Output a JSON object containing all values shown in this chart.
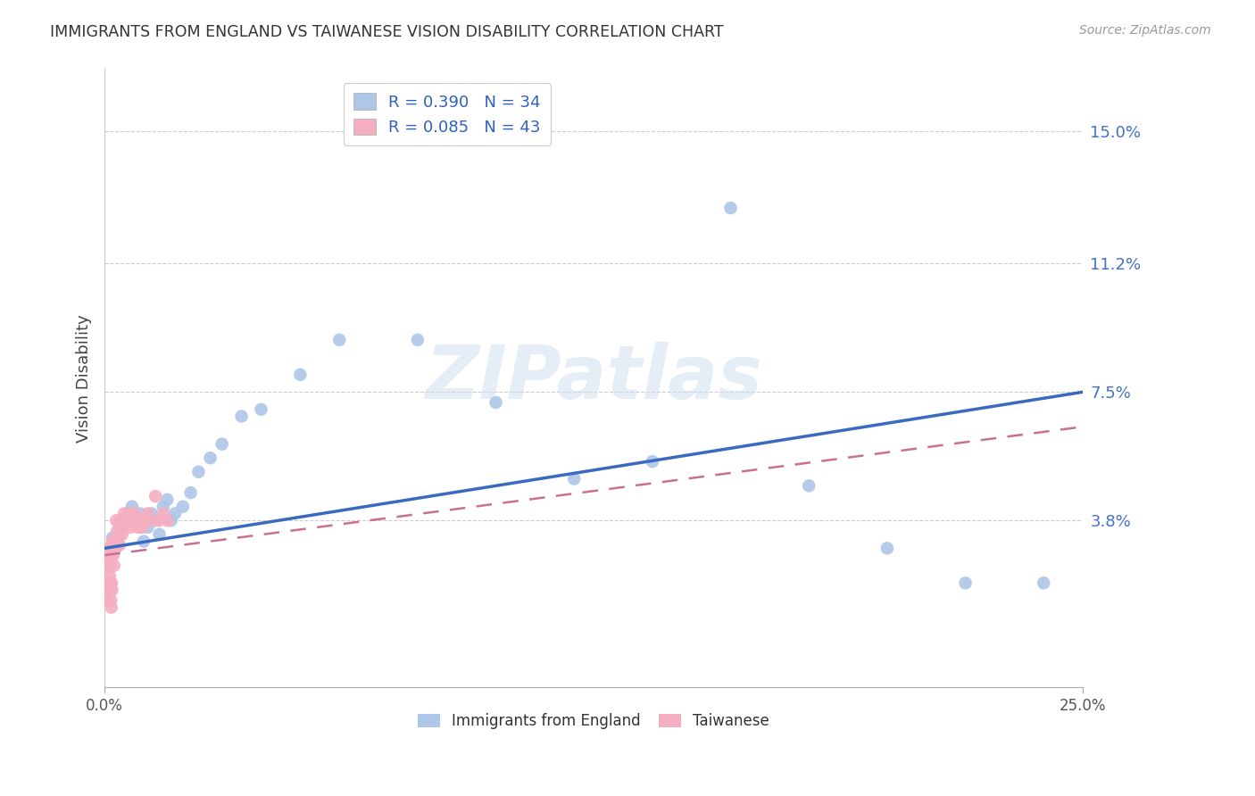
{
  "title": "IMMIGRANTS FROM ENGLAND VS TAIWANESE VISION DISABILITY CORRELATION CHART",
  "source": "Source: ZipAtlas.com",
  "ylabel": "Vision Disability",
  "ytick_vals": [
    0.038,
    0.075,
    0.112,
    0.15
  ],
  "ytick_labels": [
    "3.8%",
    "7.5%",
    "11.2%",
    "15.0%"
  ],
  "xlim": [
    0.0,
    0.25
  ],
  "ylim": [
    -0.01,
    0.168
  ],
  "watermark": "ZIPatlas",
  "legend_england_r": "R = 0.390",
  "legend_england_n": "N = 34",
  "legend_taiwanese_r": "R = 0.085",
  "legend_taiwanese_n": "N = 43",
  "england_color": "#aec6e8",
  "england_line_color": "#3a6abf",
  "taiwanese_color": "#f4aec0",
  "taiwanese_line_color": "#c97090",
  "england_points_x": [
    0.002,
    0.004,
    0.005,
    0.006,
    0.007,
    0.008,
    0.009,
    0.01,
    0.011,
    0.012,
    0.013,
    0.014,
    0.015,
    0.016,
    0.017,
    0.018,
    0.02,
    0.022,
    0.024,
    0.027,
    0.03,
    0.035,
    0.04,
    0.05,
    0.06,
    0.08,
    0.1,
    0.12,
    0.14,
    0.16,
    0.18,
    0.2,
    0.22,
    0.24
  ],
  "england_points_y": [
    0.033,
    0.036,
    0.038,
    0.04,
    0.042,
    0.038,
    0.04,
    0.032,
    0.036,
    0.04,
    0.038,
    0.034,
    0.042,
    0.044,
    0.038,
    0.04,
    0.042,
    0.046,
    0.052,
    0.056,
    0.06,
    0.068,
    0.07,
    0.08,
    0.09,
    0.09,
    0.072,
    0.05,
    0.055,
    0.128,
    0.048,
    0.03,
    0.02,
    0.02
  ],
  "taiwanese_points_x": [
    0.0003,
    0.0005,
    0.0007,
    0.0008,
    0.001,
    0.001,
    0.0012,
    0.0013,
    0.0014,
    0.0015,
    0.0016,
    0.0017,
    0.0018,
    0.0019,
    0.002,
    0.0022,
    0.0024,
    0.0026,
    0.0028,
    0.003,
    0.0032,
    0.0035,
    0.0038,
    0.004,
    0.0042,
    0.0045,
    0.005,
    0.0055,
    0.006,
    0.0065,
    0.007,
    0.0075,
    0.008,
    0.0085,
    0.009,
    0.0095,
    0.01,
    0.011,
    0.012,
    0.013,
    0.014,
    0.015,
    0.016
  ],
  "taiwanese_points_y": [
    0.025,
    0.015,
    0.02,
    0.018,
    0.03,
    0.028,
    0.025,
    0.022,
    0.02,
    0.018,
    0.015,
    0.013,
    0.02,
    0.018,
    0.032,
    0.028,
    0.025,
    0.032,
    0.03,
    0.038,
    0.035,
    0.033,
    0.031,
    0.038,
    0.036,
    0.034,
    0.04,
    0.038,
    0.04,
    0.036,
    0.038,
    0.04,
    0.038,
    0.036,
    0.038,
    0.036,
    0.038,
    0.04,
    0.038,
    0.045,
    0.038,
    0.04,
    0.038
  ],
  "england_line_x": [
    0.0,
    0.25
  ],
  "england_line_y": [
    0.03,
    0.075
  ],
  "taiwanese_line_x": [
    0.0,
    0.25
  ],
  "taiwanese_line_y": [
    0.028,
    0.065
  ]
}
